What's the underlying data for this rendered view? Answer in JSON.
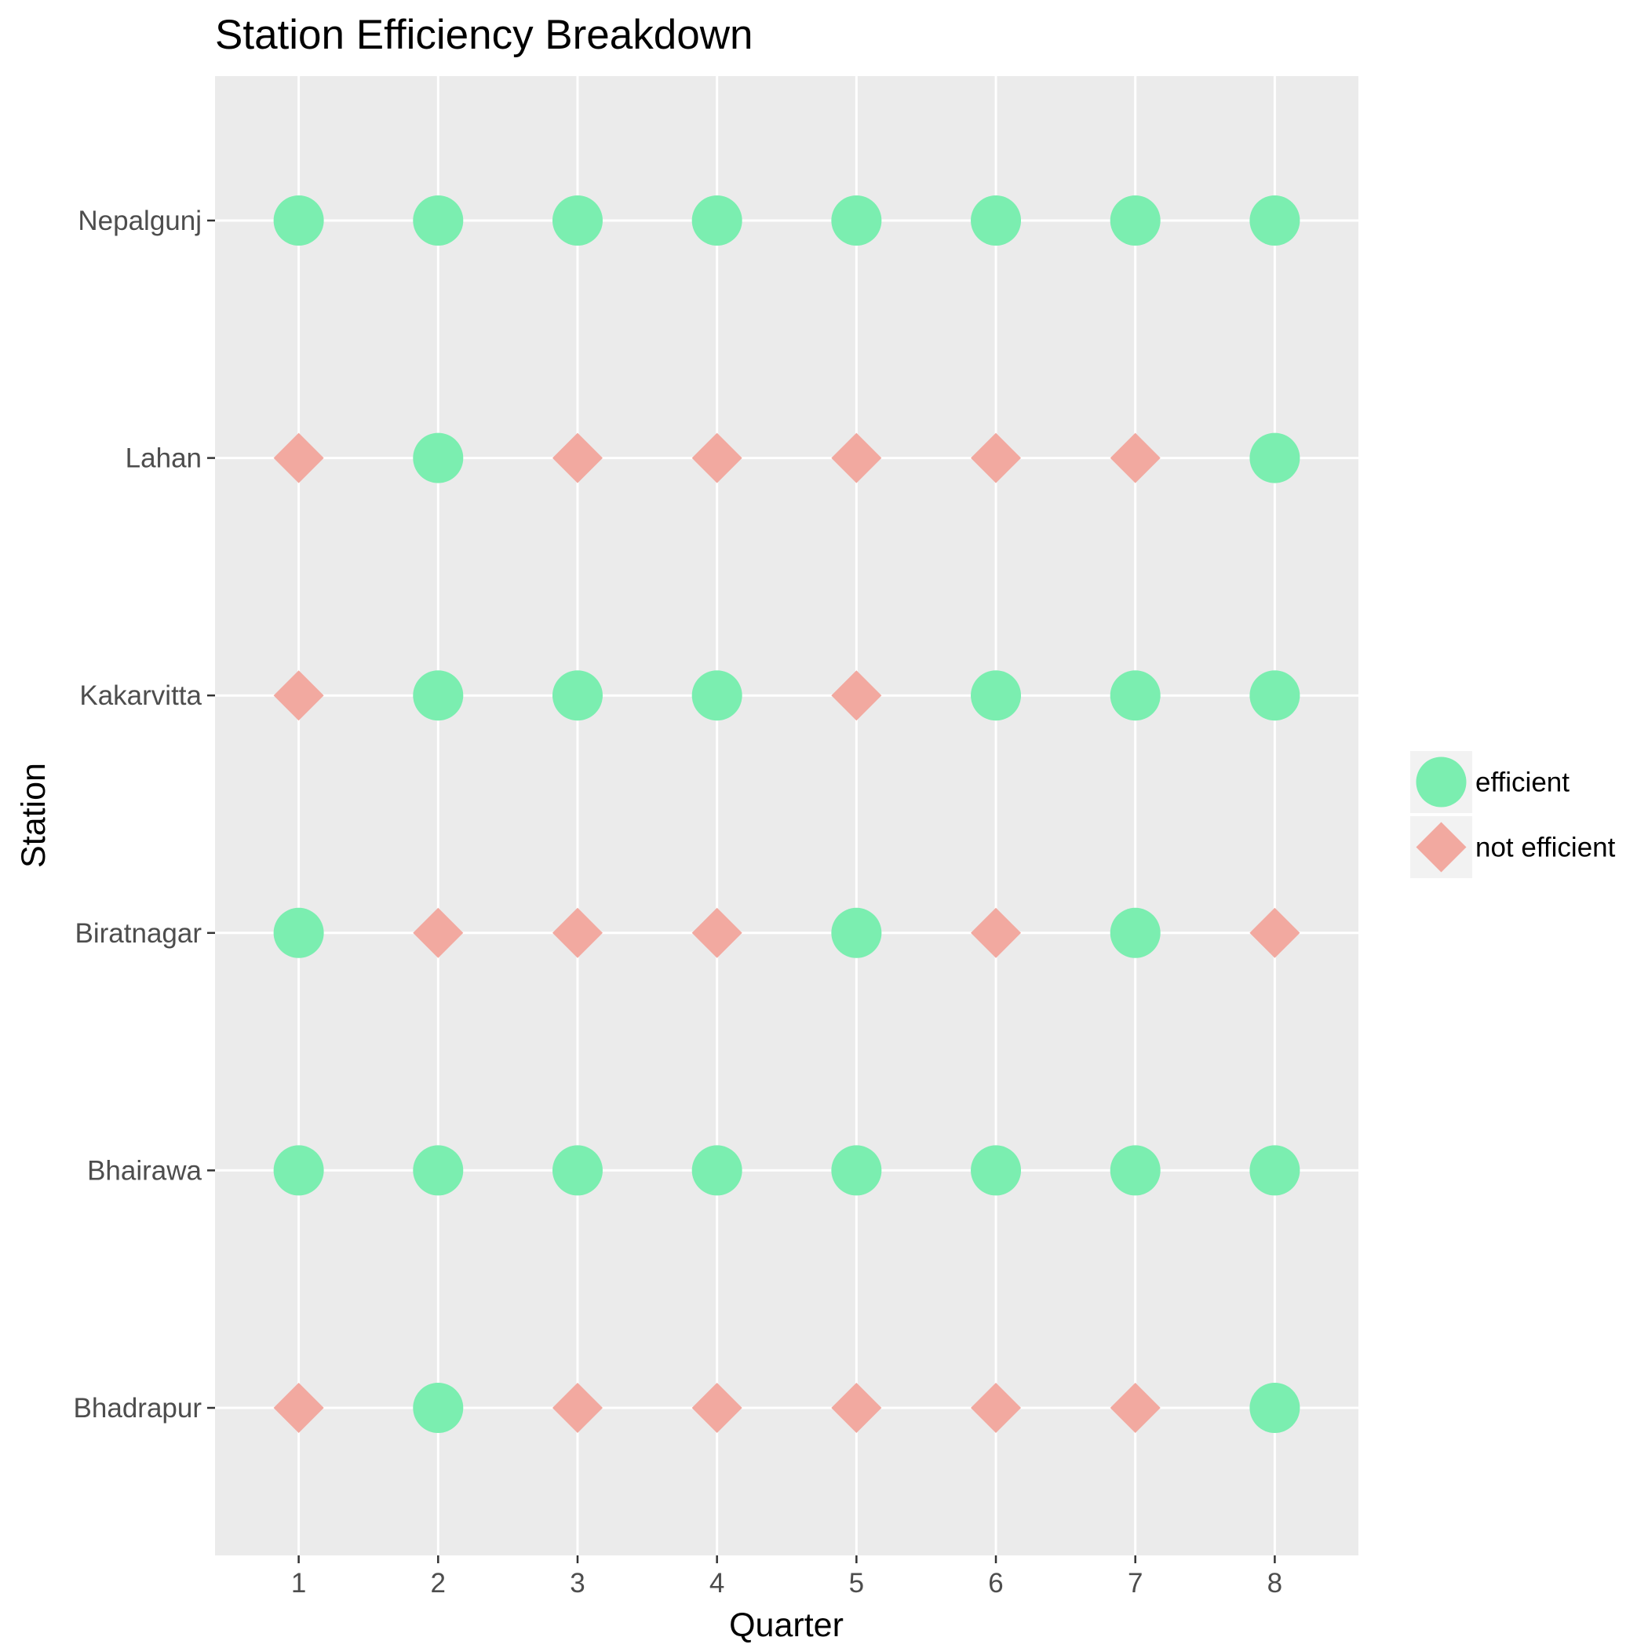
{
  "chart_data": {
    "type": "scatter",
    "title": "Station Efficiency Breakdown",
    "xlabel": "Quarter",
    "ylabel": "Station",
    "x": [
      1,
      2,
      3,
      4,
      5,
      6,
      7,
      8
    ],
    "stations": [
      "Bhadrapur",
      "Bhairawa",
      "Biratnagar",
      "Kakarvitta",
      "Lahan",
      "Nepalgunj"
    ],
    "xlim": [
      0.4,
      8.6
    ],
    "grid": true,
    "legend_position": "right",
    "series": [
      {
        "name": "efficient",
        "shape": "circle",
        "color": "#7BEEB0",
        "points": [
          {
            "station": "Nepalgunj",
            "quarters": [
              1,
              2,
              3,
              4,
              5,
              6,
              7,
              8
            ]
          },
          {
            "station": "Lahan",
            "quarters": [
              2,
              8
            ]
          },
          {
            "station": "Kakarvitta",
            "quarters": [
              2,
              3,
              4,
              6,
              7,
              8
            ]
          },
          {
            "station": "Biratnagar",
            "quarters": [
              1,
              5,
              7
            ]
          },
          {
            "station": "Bhairawa",
            "quarters": [
              1,
              2,
              3,
              4,
              5,
              6,
              7,
              8
            ]
          },
          {
            "station": "Bhadrapur",
            "quarters": [
              2,
              8
            ]
          }
        ]
      },
      {
        "name": "not efficient",
        "shape": "diamond",
        "color": "#F2A9A0",
        "points": [
          {
            "station": "Lahan",
            "quarters": [
              1,
              3,
              4,
              5,
              6,
              7
            ]
          },
          {
            "station": "Kakarvitta",
            "quarters": [
              1,
              5
            ]
          },
          {
            "station": "Biratnagar",
            "quarters": [
              2,
              3,
              4,
              6,
              8
            ]
          },
          {
            "station": "Bhadrapur",
            "quarters": [
              1,
              3,
              4,
              5,
              6,
              7
            ]
          }
        ]
      }
    ]
  }
}
